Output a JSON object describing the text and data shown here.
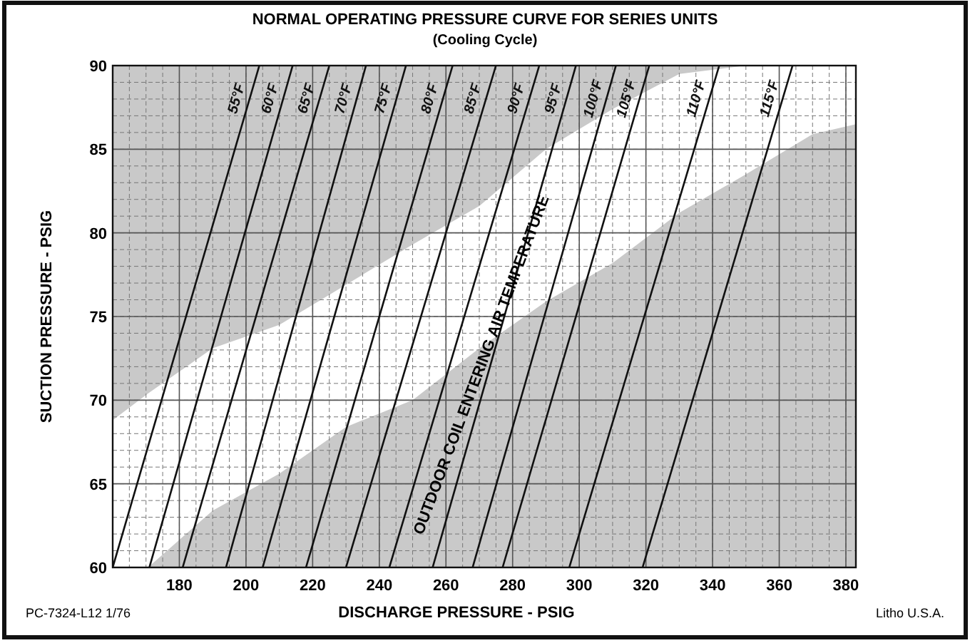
{
  "chart_data": {
    "type": "line",
    "title": "NORMAL OPERATING PRESSURE CURVE FOR SERIES UNITS",
    "subtitle": "(Cooling Cycle)",
    "xlabel": "DISCHARGE PRESSURE - PSIG",
    "ylabel": "SUCTION PRESSURE - PSIG",
    "annotations": [
      "OUTDOOR COIL ENTERING AIR TEMPERATURE",
      "PC-7324-L12   1/76",
      "Litho U.S.A."
    ],
    "xlim": [
      160,
      383
    ],
    "ylim": [
      60,
      90
    ],
    "xticks": [
      180,
      200,
      220,
      240,
      260,
      280,
      300,
      320,
      340,
      360,
      380
    ],
    "yticks": [
      60,
      65,
      70,
      75,
      80,
      85,
      90
    ],
    "grid": true,
    "series": [
      {
        "type": "area",
        "color": "#ffffff",
        "x": [
          160,
          170.6,
          190,
          210,
          230,
          250,
          270,
          290,
          310,
          330,
          350,
          370,
          383
        ],
        "values": [
          68.8,
          70.4,
          73.1,
          74.5,
          76.9,
          79.3,
          81.6,
          85.0,
          87.4,
          89.5,
          90,
          90,
          90
        ]
      },
      {
        "type": "area",
        "color": "#c9c9c9",
        "x": [
          160,
          170.6,
          190,
          210,
          230,
          250,
          270,
          290,
          310,
          330,
          350,
          370,
          383
        ],
        "values": [
          60,
          60,
          63.4,
          65.6,
          68.4,
          70.0,
          73.1,
          75.9,
          78.2,
          81.2,
          83.5,
          85.9,
          86.5
        ]
      },
      {
        "name": "55°F",
        "color": "#111111",
        "x": [
          160,
          204
        ],
        "values": [
          60,
          90
        ]
      },
      {
        "name": "60°F",
        "color": "#111111",
        "x": [
          171,
          214
        ],
        "values": [
          60,
          90
        ]
      },
      {
        "name": "65°F",
        "color": "#111111",
        "x": [
          181,
          225
        ],
        "values": [
          60,
          90
        ]
      },
      {
        "name": "70°F",
        "color": "#111111",
        "x": [
          194,
          236
        ],
        "values": [
          60,
          90
        ]
      },
      {
        "name": "75°F",
        "color": "#111111",
        "x": [
          205,
          248
        ],
        "values": [
          60,
          90
        ]
      },
      {
        "name": "80°F",
        "color": "#111111",
        "x": [
          218,
          262
        ],
        "values": [
          60,
          90
        ]
      },
      {
        "name": "85°F",
        "color": "#111111",
        "x": [
          230,
          275
        ],
        "values": [
          60,
          90
        ]
      },
      {
        "name": "90°F",
        "color": "#111111",
        "x": [
          243,
          288
        ],
        "values": [
          60,
          90
        ]
      },
      {
        "name": "95°F",
        "color": "#111111",
        "x": [
          256,
          299
        ],
        "values": [
          60,
          90
        ]
      },
      {
        "name": "100°F",
        "color": "#111111",
        "x": [
          268,
          311
        ],
        "values": [
          60,
          90
        ]
      },
      {
        "name": "105°F",
        "color": "#111111",
        "x": [
          277,
          321
        ],
        "values": [
          60,
          90
        ]
      },
      {
        "name": "110°F",
        "color": "#111111",
        "x": [
          297,
          342
        ],
        "values": [
          60,
          90
        ]
      },
      {
        "name": "115°F",
        "color": "#111111",
        "x": [
          319,
          364
        ],
        "values": [
          60,
          90
        ]
      }
    ]
  }
}
